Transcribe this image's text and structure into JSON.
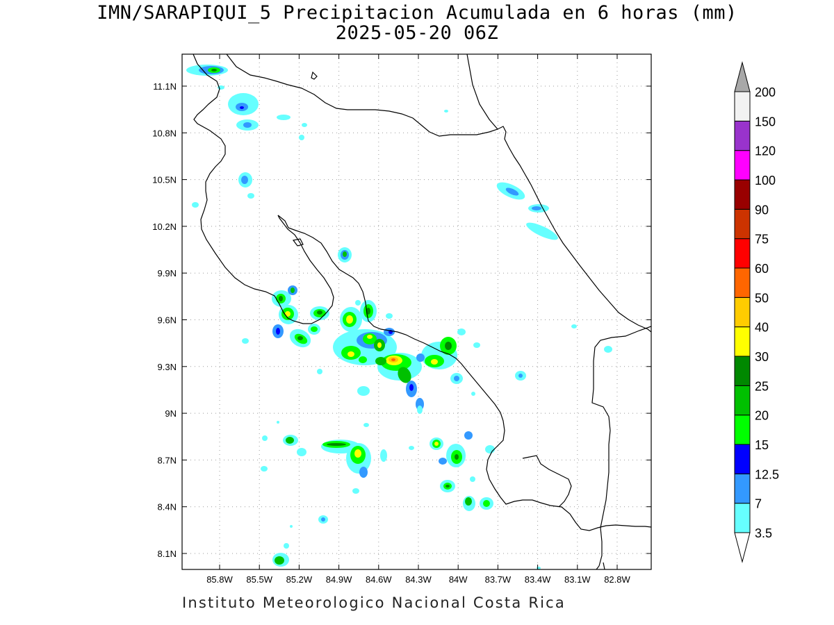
{
  "title": {
    "line1": "IMN/SARAPIQUI_5 Precipitacion Acumulada en 6 horas (mm)",
    "line2": "2025-05-20 06Z"
  },
  "footer": "Instituto Meteorologico Nacional Costa Rica",
  "axes": {
    "x_ticks": [
      "85.8W",
      "85.5W",
      "85.2W",
      "84.9W",
      "84.6W",
      "84.3W",
      "84W",
      "83.7W",
      "83.4W",
      "83.1W",
      "82.8W"
    ],
    "y_ticks": [
      "11.1N",
      "10.8N",
      "10.5N",
      "10.2N",
      "9.9N",
      "9.6N",
      "9.3N",
      "9N",
      "8.7N",
      "8.4N",
      "8.1N"
    ],
    "grid": true
  },
  "legend": {
    "levels": [
      "3.5",
      "7",
      "12.5",
      "15",
      "20",
      "25",
      "30",
      "40",
      "50",
      "60",
      "75",
      "90",
      "100",
      "120",
      "150",
      "200"
    ],
    "colors": [
      "#ffffff",
      "#66ffff",
      "#3399ff",
      "#0000ff",
      "#00ff00",
      "#00c000",
      "#008800",
      "#ffff00",
      "#ffcc00",
      "#ff6600",
      "#ff0000",
      "#cc3300",
      "#990000",
      "#ff00ff",
      "#9933cc",
      "#f2f2f2",
      "#a8a8a8"
    ]
  }
}
